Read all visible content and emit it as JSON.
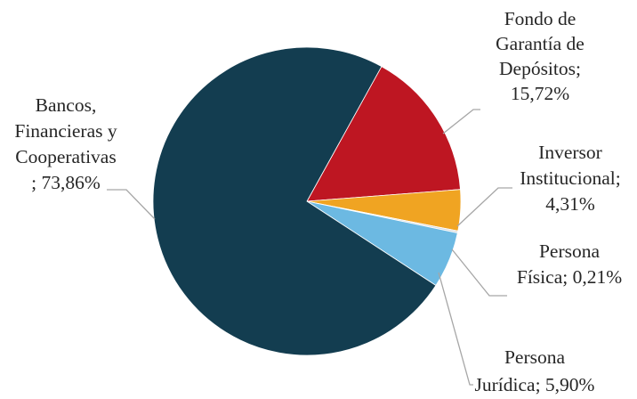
{
  "chart_data": {
    "type": "pie",
    "title": "",
    "slices": [
      {
        "label_lines": [
          "Fondo de",
          "Garantía de",
          "Depósitos;",
          "15,72%"
        ],
        "value": 15.72,
        "color": "#BE1622"
      },
      {
        "label_lines": [
          "Inversor",
          "Institucional;",
          "4,31%"
        ],
        "value": 4.31,
        "color": "#F0A422"
      },
      {
        "label_lines": [
          "Persona",
          "Física; 0,21%"
        ],
        "value": 0.21,
        "color": "#DCDCDC"
      },
      {
        "label_lines": [
          "Persona",
          "Jurídica; 5,90%"
        ],
        "value": 5.9,
        "color": "#6CB9E2"
      },
      {
        "label_lines": [
          "Bancos,",
          "Financieras y",
          "Cooperativas",
          "; 73,86%"
        ],
        "value": 73.86,
        "color": "#133D50"
      }
    ]
  }
}
